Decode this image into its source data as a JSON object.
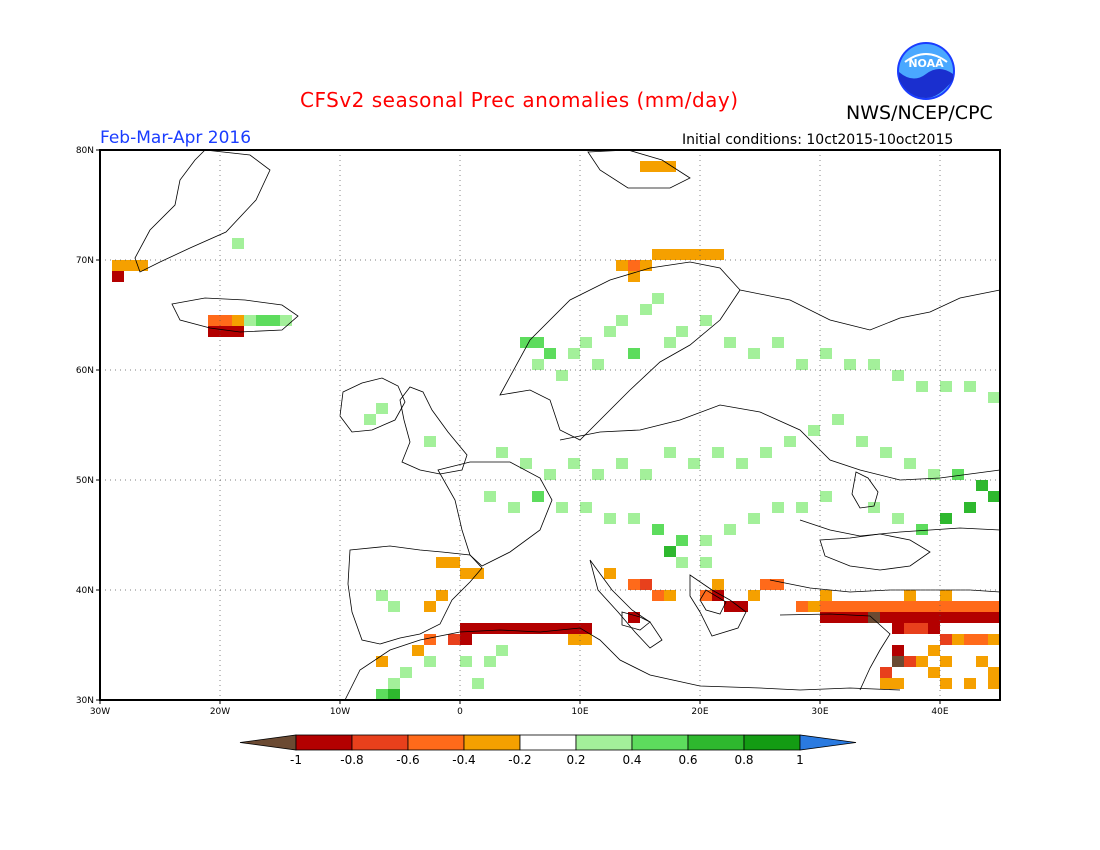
{
  "header": {
    "title": "CFSv2 seasonal Prec anomalies (mm/day)",
    "organization": "NWS/NCEP/CPC",
    "logo_text": "NOAA",
    "season": "Feb-Mar-Apr 2016",
    "initial_conditions": "Initial conditions: 10ct2015-10oct2015"
  },
  "map": {
    "lon_range": [
      -30,
      45
    ],
    "lat_range": [
      30,
      80
    ],
    "projection": "cylindrical",
    "gridlines": "dotted",
    "lat_ticks": [
      "30N",
      "40N",
      "50N",
      "60N",
      "70N",
      "80N"
    ],
    "lon_ticks": [
      "30W",
      "20W",
      "10W",
      "0",
      "10E",
      "20E",
      "30E",
      "40E"
    ]
  },
  "colorbar": {
    "labels": [
      "-1",
      "-0.8",
      "-0.6",
      "-0.4",
      "-0.2",
      "0.2",
      "0.4",
      "0.6",
      "0.8",
      "1"
    ],
    "colors": [
      "#6b4a32",
      "#b30000",
      "#e8401c",
      "#ff6a1a",
      "#f5a000",
      "#ffffff",
      "#a3f09a",
      "#5ddc5d",
      "#2eb82e",
      "#139c13",
      "#2a7ae0"
    ]
  },
  "chart_data": {
    "type": "heatmap",
    "variable": "Precipitation anomaly",
    "units": "mm/day",
    "grid_step_deg": 1,
    "cells": [
      {
        "lon": -29,
        "lat": 69,
        "v": -0.3
      },
      {
        "lon": -28,
        "lat": 69,
        "v": -0.3
      },
      {
        "lon": -27,
        "lat": 69,
        "v": -0.3
      },
      {
        "lon": -29,
        "lat": 68,
        "v": -0.8
      },
      {
        "lon": -21,
        "lat": 64,
        "v": -0.5
      },
      {
        "lon": -20,
        "lat": 64,
        "v": -0.5
      },
      {
        "lon": -19,
        "lat": 64,
        "v": -0.3
      },
      {
        "lon": -21,
        "lat": 63,
        "v": -0.8
      },
      {
        "lon": -20,
        "lat": 63,
        "v": -0.8
      },
      {
        "lon": -19,
        "lat": 63,
        "v": -0.8
      },
      {
        "lon": -18,
        "lat": 64,
        "v": 0.3
      },
      {
        "lon": -17,
        "lat": 64,
        "v": 0.5
      },
      {
        "lon": -16,
        "lat": 64,
        "v": 0.5
      },
      {
        "lon": -15,
        "lat": 64,
        "v": 0.3
      },
      {
        "lon": -19,
        "lat": 71,
        "v": 0.3
      },
      {
        "lon": -8,
        "lat": 55,
        "v": 0.3
      },
      {
        "lon": -7,
        "lat": 56,
        "v": 0.3
      },
      {
        "lon": -3,
        "lat": 53,
        "v": 0.3
      },
      {
        "lon": 5,
        "lat": 62,
        "v": 0.5
      },
      {
        "lon": 6,
        "lat": 62,
        "v": 0.5
      },
      {
        "lon": 7,
        "lat": 61,
        "v": 0.5
      },
      {
        "lon": 6,
        "lat": 60,
        "v": 0.3
      },
      {
        "lon": 8,
        "lat": 59,
        "v": 0.3
      },
      {
        "lon": 9,
        "lat": 61,
        "v": 0.3
      },
      {
        "lon": 10,
        "lat": 62,
        "v": 0.3
      },
      {
        "lon": 11,
        "lat": 60,
        "v": 0.3
      },
      {
        "lon": 12,
        "lat": 63,
        "v": 0.3
      },
      {
        "lon": 13,
        "lat": 64,
        "v": 0.3
      },
      {
        "lon": 14,
        "lat": 61,
        "v": 0.5
      },
      {
        "lon": 15,
        "lat": 65,
        "v": 0.3
      },
      {
        "lon": 16,
        "lat": 66,
        "v": 0.3
      },
      {
        "lon": 17,
        "lat": 62,
        "v": 0.3
      },
      {
        "lon": 18,
        "lat": 63,
        "v": 0.3
      },
      {
        "lon": 20,
        "lat": 64,
        "v": 0.3
      },
      {
        "lon": 22,
        "lat": 62,
        "v": 0.3
      },
      {
        "lon": 24,
        "lat": 61,
        "v": 0.3
      },
      {
        "lon": 26,
        "lat": 62,
        "v": 0.3
      },
      {
        "lon": 28,
        "lat": 60,
        "v": 0.3
      },
      {
        "lon": 30,
        "lat": 61,
        "v": 0.3
      },
      {
        "lon": 32,
        "lat": 60,
        "v": 0.3
      },
      {
        "lon": 34,
        "lat": 60,
        "v": 0.3
      },
      {
        "lon": 36,
        "lat": 59,
        "v": 0.3
      },
      {
        "lon": 38,
        "lat": 58,
        "v": 0.3
      },
      {
        "lon": 40,
        "lat": 58,
        "v": 0.3
      },
      {
        "lon": 42,
        "lat": 58,
        "v": 0.3
      },
      {
        "lon": 44,
        "lat": 57,
        "v": 0.3
      },
      {
        "lon": 3,
        "lat": 52,
        "v": 0.3
      },
      {
        "lon": 5,
        "lat": 51,
        "v": 0.3
      },
      {
        "lon": 7,
        "lat": 50,
        "v": 0.3
      },
      {
        "lon": 9,
        "lat": 51,
        "v": 0.3
      },
      {
        "lon": 11,
        "lat": 50,
        "v": 0.3
      },
      {
        "lon": 13,
        "lat": 51,
        "v": 0.3
      },
      {
        "lon": 15,
        "lat": 50,
        "v": 0.3
      },
      {
        "lon": 17,
        "lat": 52,
        "v": 0.3
      },
      {
        "lon": 19,
        "lat": 51,
        "v": 0.3
      },
      {
        "lon": 21,
        "lat": 52,
        "v": 0.3
      },
      {
        "lon": 23,
        "lat": 51,
        "v": 0.3
      },
      {
        "lon": 25,
        "lat": 52,
        "v": 0.3
      },
      {
        "lon": 27,
        "lat": 53,
        "v": 0.3
      },
      {
        "lon": 29,
        "lat": 54,
        "v": 0.3
      },
      {
        "lon": 31,
        "lat": 55,
        "v": 0.3
      },
      {
        "lon": 33,
        "lat": 53,
        "v": 0.3
      },
      {
        "lon": 35,
        "lat": 52,
        "v": 0.3
      },
      {
        "lon": 37,
        "lat": 51,
        "v": 0.3
      },
      {
        "lon": 39,
        "lat": 50,
        "v": 0.3
      },
      {
        "lon": 41,
        "lat": 50,
        "v": 0.5
      },
      {
        "lon": 43,
        "lat": 49,
        "v": 0.7
      },
      {
        "lon": 44,
        "lat": 48,
        "v": 0.7
      },
      {
        "lon": 42,
        "lat": 47,
        "v": 0.7
      },
      {
        "lon": 40,
        "lat": 46,
        "v": 0.7
      },
      {
        "lon": 38,
        "lat": 45,
        "v": 0.5
      },
      {
        "lon": 36,
        "lat": 46,
        "v": 0.3
      },
      {
        "lon": 34,
        "lat": 47,
        "v": 0.3
      },
      {
        "lon": 2,
        "lat": 48,
        "v": 0.3
      },
      {
        "lon": 4,
        "lat": 47,
        "v": 0.3
      },
      {
        "lon": 6,
        "lat": 48,
        "v": 0.5
      },
      {
        "lon": 8,
        "lat": 47,
        "v": 0.3
      },
      {
        "lon": 10,
        "lat": 47,
        "v": 0.3
      },
      {
        "lon": 12,
        "lat": 46,
        "v": 0.3
      },
      {
        "lon": 14,
        "lat": 46,
        "v": 0.3
      },
      {
        "lon": 16,
        "lat": 45,
        "v": 0.5
      },
      {
        "lon": 18,
        "lat": 44,
        "v": 0.5
      },
      {
        "lon": 20,
        "lat": 44,
        "v": 0.3
      },
      {
        "lon": 22,
        "lat": 45,
        "v": 0.3
      },
      {
        "lon": 24,
        "lat": 46,
        "v": 0.3
      },
      {
        "lon": 26,
        "lat": 47,
        "v": 0.3
      },
      {
        "lon": 28,
        "lat": 47,
        "v": 0.3
      },
      {
        "lon": 30,
        "lat": 48,
        "v": 0.3
      },
      {
        "lon": -7,
        "lat": 39,
        "v": 0.3
      },
      {
        "lon": -6,
        "lat": 38,
        "v": 0.3
      },
      {
        "lon": -2,
        "lat": 42,
        "v": -0.3
      },
      {
        "lon": -1,
        "lat": 42,
        "v": -0.3
      },
      {
        "lon": 0,
        "lat": 41,
        "v": -0.3
      },
      {
        "lon": 1,
        "lat": 41,
        "v": -0.3
      },
      {
        "lon": -2,
        "lat": 39,
        "v": -0.3
      },
      {
        "lon": -3,
        "lat": 38,
        "v": -0.3
      },
      {
        "lon": -3,
        "lat": 35,
        "v": -0.5
      },
      {
        "lon": -4,
        "lat": 34,
        "v": -0.3
      },
      {
        "lon": -7,
        "lat": 33,
        "v": -0.3
      },
      {
        "lon": 0,
        "lat": 36,
        "v": -0.8
      },
      {
        "lon": 1,
        "lat": 36,
        "v": -0.8
      },
      {
        "lon": 2,
        "lat": 36,
        "v": -0.8
      },
      {
        "lon": 3,
        "lat": 36,
        "v": -0.8
      },
      {
        "lon": 4,
        "lat": 36,
        "v": -0.8
      },
      {
        "lon": 5,
        "lat": 36,
        "v": -0.8
      },
      {
        "lon": 6,
        "lat": 36,
        "v": -0.8
      },
      {
        "lon": 7,
        "lat": 36,
        "v": -0.8
      },
      {
        "lon": 8,
        "lat": 36,
        "v": -0.8
      },
      {
        "lon": 9,
        "lat": 36,
        "v": -0.8
      },
      {
        "lon": 10,
        "lat": 36,
        "v": -0.8
      },
      {
        "lon": -1,
        "lat": 35,
        "v": -0.6
      },
      {
        "lon": 0,
        "lat": 35,
        "v": -0.8
      },
      {
        "lon": 9,
        "lat": 35,
        "v": -0.3
      },
      {
        "lon": 10,
        "lat": 35,
        "v": -0.3
      },
      {
        "lon": -6,
        "lat": 31,
        "v": 0.3
      },
      {
        "lon": -5,
        "lat": 32,
        "v": 0.3
      },
      {
        "lon": -7,
        "lat": 30,
        "v": 0.5
      },
      {
        "lon": -6,
        "lat": 30,
        "v": 0.7
      },
      {
        "lon": -3,
        "lat": 33,
        "v": 0.3
      },
      {
        "lon": 0,
        "lat": 33,
        "v": 0.3
      },
      {
        "lon": 2,
        "lat": 33,
        "v": 0.3
      },
      {
        "lon": 3,
        "lat": 34,
        "v": 0.3
      },
      {
        "lon": 1,
        "lat": 31,
        "v": 0.3
      },
      {
        "lon": 12,
        "lat": 41,
        "v": -0.3
      },
      {
        "lon": 14,
        "lat": 40,
        "v": -0.5
      },
      {
        "lon": 15,
        "lat": 40,
        "v": -0.7
      },
      {
        "lon": 16,
        "lat": 39,
        "v": -0.5
      },
      {
        "lon": 17,
        "lat": 39,
        "v": -0.3
      },
      {
        "lon": 14,
        "lat": 37,
        "v": -0.8
      },
      {
        "lon": 20,
        "lat": 39,
        "v": -0.5
      },
      {
        "lon": 21,
        "lat": 39,
        "v": -0.8
      },
      {
        "lon": 22,
        "lat": 38,
        "v": -0.9
      },
      {
        "lon": 23,
        "lat": 38,
        "v": -0.9
      },
      {
        "lon": 24,
        "lat": 39,
        "v": -0.3
      },
      {
        "lon": 25,
        "lat": 40,
        "v": -0.5
      },
      {
        "lon": 26,
        "lat": 40,
        "v": -0.5
      },
      {
        "lon": 21,
        "lat": 40,
        "v": -0.3
      },
      {
        "lon": 28,
        "lat": 38,
        "v": -0.5
      },
      {
        "lon": 29,
        "lat": 38,
        "v": -0.3
      },
      {
        "lon": 30,
        "lat": 38,
        "v": -0.5
      },
      {
        "lon": 31,
        "lat": 38,
        "v": -0.5
      },
      {
        "lon": 32,
        "lat": 38,
        "v": -0.5
      },
      {
        "lon": 33,
        "lat": 38,
        "v": -0.5
      },
      {
        "lon": 34,
        "lat": 38,
        "v": -0.5
      },
      {
        "lon": 35,
        "lat": 38,
        "v": -0.5
      },
      {
        "lon": 36,
        "lat": 38,
        "v": -0.5
      },
      {
        "lon": 30,
        "lat": 37,
        "v": -0.8
      },
      {
        "lon": 31,
        "lat": 37,
        "v": -0.8
      },
      {
        "lon": 32,
        "lat": 37,
        "v": -0.8
      },
      {
        "lon": 33,
        "lat": 37,
        "v": -0.8
      },
      {
        "lon": 34,
        "lat": 37,
        "v": -1.0
      },
      {
        "lon": 35,
        "lat": 37,
        "v": -0.8
      },
      {
        "lon": 36,
        "lat": 37,
        "v": -0.8
      },
      {
        "lon": 37,
        "lat": 37,
        "v": -0.8
      },
      {
        "lon": 38,
        "lat": 37,
        "v": -0.8
      },
      {
        "lon": 39,
        "lat": 37,
        "v": -0.8
      },
      {
        "lon": 40,
        "lat": 37,
        "v": -0.8
      },
      {
        "lon": 41,
        "lat": 37,
        "v": -0.8
      },
      {
        "lon": 42,
        "lat": 37,
        "v": -0.8
      },
      {
        "lon": 43,
        "lat": 37,
        "v": -0.8
      },
      {
        "lon": 44,
        "lat": 37,
        "v": -0.8
      },
      {
        "lon": 37,
        "lat": 38,
        "v": -0.5
      },
      {
        "lon": 38,
        "lat": 38,
        "v": -0.5
      },
      {
        "lon": 39,
        "lat": 38,
        "v": -0.5
      },
      {
        "lon": 40,
        "lat": 38,
        "v": -0.5
      },
      {
        "lon": 41,
        "lat": 38,
        "v": -0.5
      },
      {
        "lon": 42,
        "lat": 38,
        "v": -0.5
      },
      {
        "lon": 43,
        "lat": 38,
        "v": -0.5
      },
      {
        "lon": 44,
        "lat": 38,
        "v": -0.5
      },
      {
        "lon": 37,
        "lat": 39,
        "v": -0.3
      },
      {
        "lon": 40,
        "lat": 39,
        "v": -0.3
      },
      {
        "lon": 30,
        "lat": 39,
        "v": -0.3
      },
      {
        "lon": 36,
        "lat": 36,
        "v": -0.8
      },
      {
        "lon": 37,
        "lat": 36,
        "v": -0.6
      },
      {
        "lon": 38,
        "lat": 36,
        "v": -0.6
      },
      {
        "lon": 39,
        "lat": 36,
        "v": -0.8
      },
      {
        "lon": 40,
        "lat": 35,
        "v": -0.6
      },
      {
        "lon": 41,
        "lat": 35,
        "v": -0.3
      },
      {
        "lon": 42,
        "lat": 35,
        "v": -0.5
      },
      {
        "lon": 43,
        "lat": 35,
        "v": -0.5
      },
      {
        "lon": 44,
        "lat": 35,
        "v": -0.3
      },
      {
        "lon": 36,
        "lat": 34,
        "v": -0.9
      },
      {
        "lon": 36,
        "lat": 33,
        "v": -1.0
      },
      {
        "lon": 37,
        "lat": 33,
        "v": -0.6
      },
      {
        "lon": 38,
        "lat": 33,
        "v": -0.3
      },
      {
        "lon": 39,
        "lat": 34,
        "v": -0.3
      },
      {
        "lon": 40,
        "lat": 33,
        "v": -0.3
      },
      {
        "lon": 35,
        "lat": 32,
        "v": -0.6
      },
      {
        "lon": 35,
        "lat": 31,
        "v": -0.3
      },
      {
        "lon": 36,
        "lat": 31,
        "v": -0.3
      },
      {
        "lon": 39,
        "lat": 32,
        "v": -0.3
      },
      {
        "lon": 40,
        "lat": 31,
        "v": -0.3
      },
      {
        "lon": 43,
        "lat": 33,
        "v": -0.3
      },
      {
        "lon": 44,
        "lat": 32,
        "v": -0.3
      },
      {
        "lon": 44,
        "lat": 31,
        "v": -0.3
      },
      {
        "lon": 42,
        "lat": 31,
        "v": -0.3
      },
      {
        "lon": 13,
        "lat": 69,
        "v": -0.3
      },
      {
        "lon": 14,
        "lat": 69,
        "v": -0.5
      },
      {
        "lon": 15,
        "lat": 69,
        "v": -0.3
      },
      {
        "lon": 16,
        "lat": 70,
        "v": -0.3
      },
      {
        "lon": 17,
        "lat": 70,
        "v": -0.3
      },
      {
        "lon": 18,
        "lat": 70,
        "v": -0.3
      },
      {
        "lon": 19,
        "lat": 70,
        "v": -0.3
      },
      {
        "lon": 20,
        "lat": 70,
        "v": -0.3
      },
      {
        "lon": 21,
        "lat": 70,
        "v": -0.3
      },
      {
        "lon": 14,
        "lat": 68,
        "v": -0.3
      },
      {
        "lon": 15,
        "lat": 78,
        "v": -0.3
      },
      {
        "lon": 16,
        "lat": 78,
        "v": -0.3
      },
      {
        "lon": 17,
        "lat": 78,
        "v": -0.3
      },
      {
        "lon": 20,
        "lat": 42,
        "v": 0.3
      },
      {
        "lon": 18,
        "lat": 42,
        "v": 0.3
      },
      {
        "lon": 17,
        "lat": 43,
        "v": 0.6
      }
    ]
  }
}
